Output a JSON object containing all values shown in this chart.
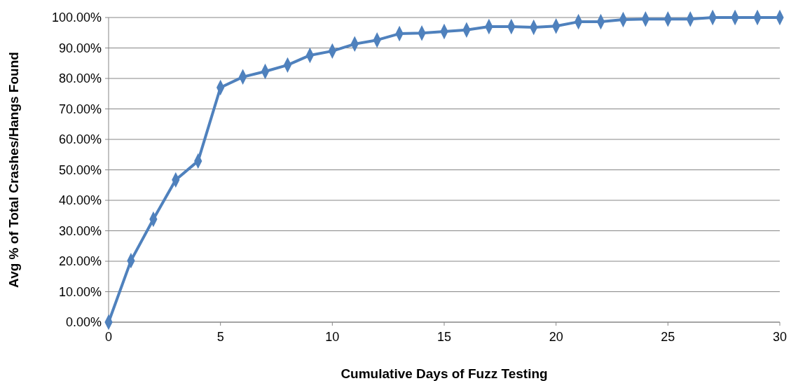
{
  "chart_data": {
    "type": "line",
    "xlabel": "Cumulative Days of Fuzz Testing",
    "ylabel": "Avg % of Total Crashes/Hangs Found",
    "x": [
      0,
      1,
      2,
      3,
      4,
      5,
      6,
      7,
      8,
      9,
      10,
      11,
      12,
      13,
      14,
      15,
      16,
      17,
      18,
      19,
      20,
      21,
      22,
      23,
      24,
      25,
      26,
      27,
      28,
      29,
      30
    ],
    "series": [
      {
        "color": "#4f81bd",
        "values": [
          0,
          20.2,
          33.8,
          46.7,
          52.9,
          77.0,
          80.5,
          82.3,
          84.4,
          87.6,
          89.0,
          91.3,
          92.6,
          94.7,
          94.9,
          95.4,
          95.9,
          97.0,
          97.0,
          96.8,
          97.2,
          98.6,
          98.6,
          99.3,
          99.5,
          99.5,
          99.5,
          100,
          100,
          100,
          100
        ]
      }
    ],
    "xlim": [
      0,
      30
    ],
    "xticks": [
      0,
      5,
      10,
      15,
      20,
      25,
      30
    ],
    "ylim": [
      0,
      100
    ],
    "yticks": [
      {
        "value": 0,
        "label": "0.00%"
      },
      {
        "value": 10,
        "label": "10.00%"
      },
      {
        "value": 20,
        "label": "20.00%"
      },
      {
        "value": 30,
        "label": "30.00%"
      },
      {
        "value": 40,
        "label": "40.00%"
      },
      {
        "value": 50,
        "label": "50.00%"
      },
      {
        "value": 60,
        "label": "60.00%"
      },
      {
        "value": 70,
        "label": "70.00%"
      },
      {
        "value": 80,
        "label": "80.00%"
      },
      {
        "value": 90,
        "label": "90.00%"
      },
      {
        "value": 100,
        "label": "100.00%"
      }
    ],
    "grid": "y",
    "marker": "diamond",
    "line_style": "solid"
  }
}
